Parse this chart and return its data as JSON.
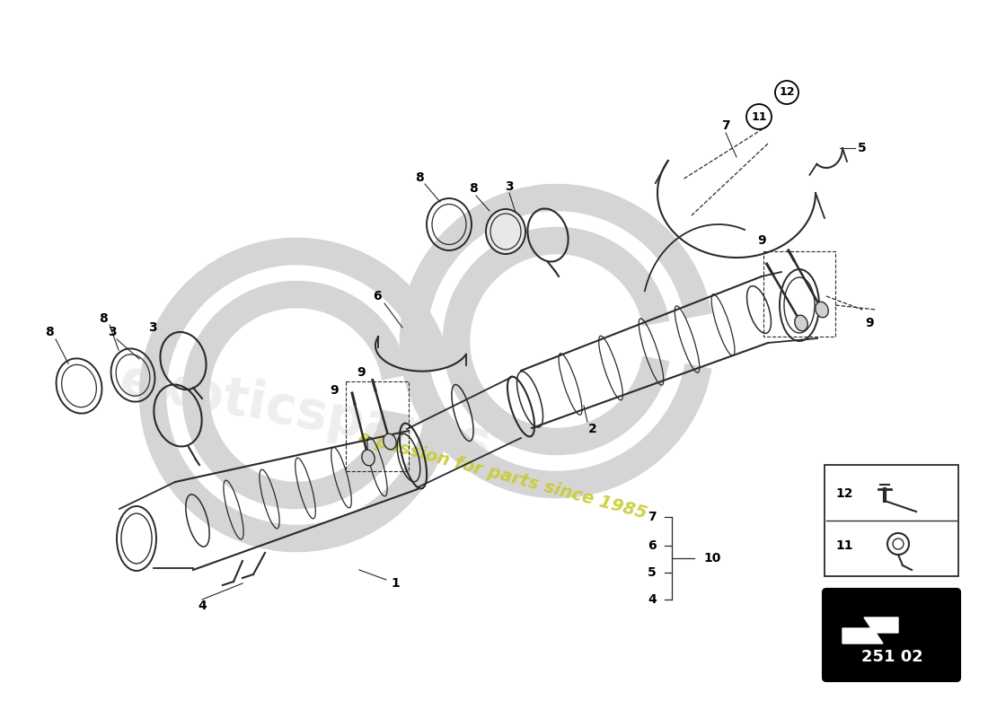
{
  "background_color": "#ffffff",
  "line_color": "#2a2a2a",
  "part_number": "251 02",
  "watermark_text": "a passion for parts since 1985",
  "watermark_color": "#c8cc30"
}
